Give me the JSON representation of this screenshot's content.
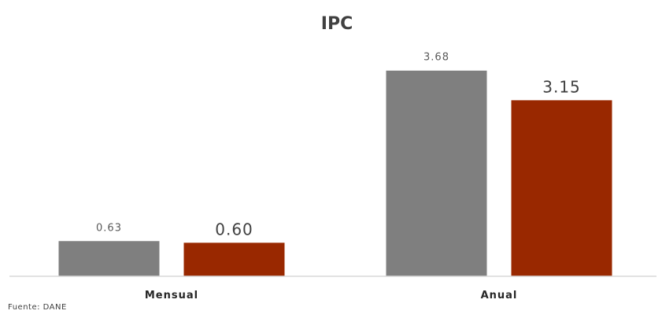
{
  "chart_data": {
    "type": "bar",
    "title": "IPC",
    "categories": [
      "Mensual",
      "Anual"
    ],
    "series": [
      {
        "values": [
          0.63,
          3.68
        ],
        "labels": [
          "0.63",
          "3.68"
        ],
        "color": "#7f7f7f"
      },
      {
        "values": [
          0.6,
          3.15
        ],
        "labels": [
          "0.60",
          "3.15"
        ],
        "color": "#992800"
      }
    ],
    "ylim": [
      0,
      4.1
    ],
    "grid": false,
    "legend": "none",
    "xlabel": "",
    "ylabel": ""
  },
  "source": "Fuente: DANE"
}
